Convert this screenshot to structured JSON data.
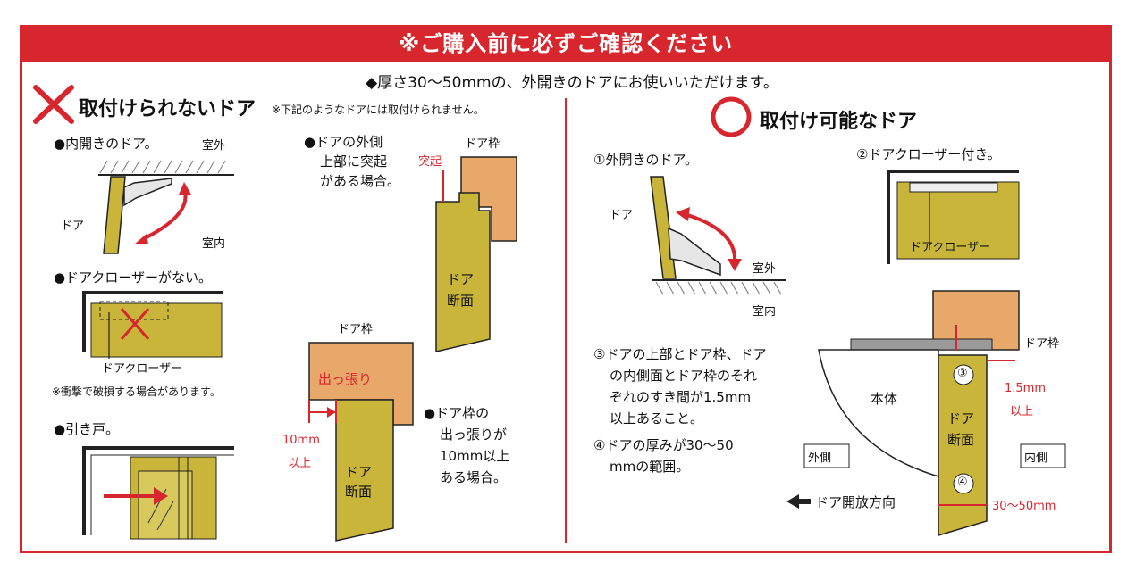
{
  "banner": "※ご購入前に必ずご確認ください",
  "subtitle": "◆厚さ30〜50mmの、外開きのドアにお使いいただけます。",
  "left": {
    "heading": "取付けられないドア",
    "heading_note": "※下記のようなドアには取付けられません。",
    "case1": {
      "title": "●内開きのドア。",
      "outside": "室外",
      "door": "ドア",
      "inside": "室内"
    },
    "case2": {
      "title": "●ドアクローザーがない。",
      "closer": "ドアクローザー",
      "note": "※衝撃で破損する場合があります。"
    },
    "case3": {
      "title": "●引き戸。"
    },
    "case4": {
      "line1": "●ドアの外側",
      "line2": "上部に突起",
      "line3": "がある場合。",
      "frame": "ドア枠",
      "protrusion": "突起",
      "door_l1": "ドア",
      "door_l2": "断面"
    },
    "case5": {
      "frame": "ドア枠",
      "overhang": "出っ張り",
      "dim_l1": "10mm",
      "dim_l2": "以上",
      "door_l1": "ドア",
      "door_l2": "断面",
      "line1": "●ドア枠の",
      "line2": "出っ張りが",
      "line3": "10mm以上",
      "line4": "ある場合。"
    }
  },
  "right": {
    "heading": "取付け可能なドア",
    "ok1": {
      "title": "①外開きのドア。",
      "door": "ドア",
      "outside": "室外",
      "inside": "室内"
    },
    "ok2": {
      "title": "②ドアクローザー付き。",
      "closer": "ドアクローザー"
    },
    "cond": {
      "l1": "③ドアの上部とドア枠、ドア",
      "l2": "の内側面とドア枠のそれ",
      "l3": "ぞれのすき間が1.5mm",
      "l4": "以上あること。",
      "l5": "④ドアの厚みが30〜50",
      "l6": "mmの範囲。"
    },
    "diagram": {
      "frame": "ドア枠",
      "body": "本体",
      "door_l1": "ドア",
      "door_l2": "断面",
      "gap_l1": "1.5mm",
      "gap_l2": "以上",
      "outside": "外側",
      "inside": "内側",
      "mark3": "③",
      "mark4": "④",
      "direction": "ドア開放方向",
      "thickness": "30〜50mm"
    }
  },
  "colors": {
    "accent": "#d7262d",
    "door": "#c9b53a",
    "frame": "#e8a86a"
  }
}
